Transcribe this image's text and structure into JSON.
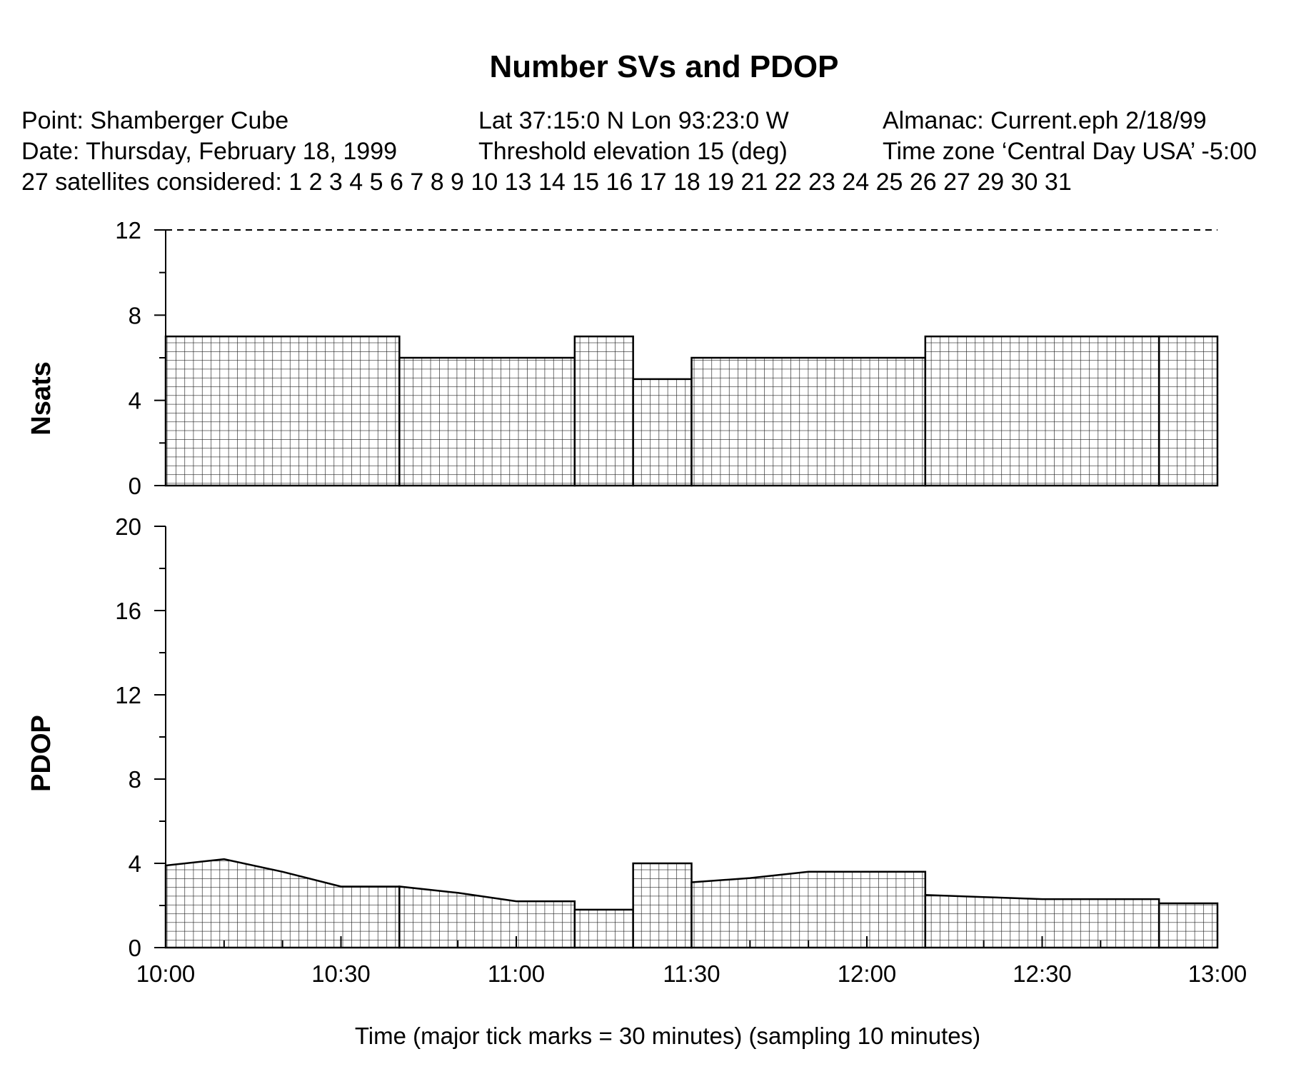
{
  "chart_data": {
    "type": "bar",
    "title": "Number SVs and PDOP",
    "header": {
      "point": "Point: Shamberger Cube",
      "latlon": "Lat 37:15:0 N Lon 93:23:0 W",
      "almanac": "Almanac: Current.eph 2/18/99",
      "date": "Date: Thursday, February 18, 1999",
      "threshold": "Threshold elevation 15 (deg)",
      "timezone": "Time zone ‘Central Day USA’ -5:00",
      "satellites": "27 satellites considered: 1 2 3 4 5 6 7 8 9 10 13 14 15 16 17 18 19 21 22 23 24 25 26 27 29 30 31"
    },
    "xlabel": "Time (major tick marks = 30 minutes) (sampling 10 minutes)",
    "x_ticks": [
      "10:00",
      "10:30",
      "11:00",
      "11:30",
      "12:00",
      "12:30",
      "13:00"
    ],
    "x_range_minutes": [
      0,
      180
    ],
    "panels": [
      {
        "name": "nsats",
        "ylabel": "Nsats",
        "ylim": [
          0,
          12
        ],
        "y_ticks": [
          "0",
          "4",
          "8",
          "12"
        ],
        "reference_line": 12,
        "segments": [
          {
            "start": 0,
            "end": 40,
            "value": 7
          },
          {
            "start": 40,
            "end": 70,
            "value": 6
          },
          {
            "start": 70,
            "end": 80,
            "value": 7
          },
          {
            "start": 80,
            "end": 90,
            "value": 5
          },
          {
            "start": 90,
            "end": 130,
            "value": 6
          },
          {
            "start": 130,
            "end": 170,
            "value": 7
          },
          {
            "start": 170,
            "end": 180,
            "value": 7
          }
        ]
      },
      {
        "name": "pdop",
        "ylabel": "PDOP",
        "ylim": [
          0,
          20
        ],
        "y_ticks": [
          "0",
          "4",
          "8",
          "12",
          "16",
          "20"
        ],
        "segments": [
          {
            "start": 0,
            "end": 40,
            "points": [
              [
                0,
                3.9
              ],
              [
                10,
                4.2
              ],
              [
                20,
                3.6
              ],
              [
                30,
                2.9
              ],
              [
                40,
                2.9
              ]
            ]
          },
          {
            "start": 40,
            "end": 70,
            "points": [
              [
                40,
                2.9
              ],
              [
                50,
                2.6
              ],
              [
                60,
                2.2
              ],
              [
                70,
                2.2
              ]
            ]
          },
          {
            "start": 70,
            "end": 80,
            "points": [
              [
                70,
                1.8
              ],
              [
                80,
                1.8
              ]
            ]
          },
          {
            "start": 80,
            "end": 90,
            "points": [
              [
                80,
                4.0
              ],
              [
                90,
                4.0
              ]
            ]
          },
          {
            "start": 90,
            "end": 130,
            "points": [
              [
                90,
                3.1
              ],
              [
                100,
                3.3
              ],
              [
                110,
                3.6
              ],
              [
                120,
                3.6
              ],
              [
                130,
                3.6
              ]
            ]
          },
          {
            "start": 130,
            "end": 170,
            "points": [
              [
                130,
                2.5
              ],
              [
                140,
                2.4
              ],
              [
                150,
                2.3
              ],
              [
                160,
                2.3
              ],
              [
                170,
                2.3
              ]
            ]
          },
          {
            "start": 170,
            "end": 180,
            "points": [
              [
                170,
                2.1
              ],
              [
                180,
                2.1
              ]
            ]
          }
        ]
      }
    ]
  }
}
